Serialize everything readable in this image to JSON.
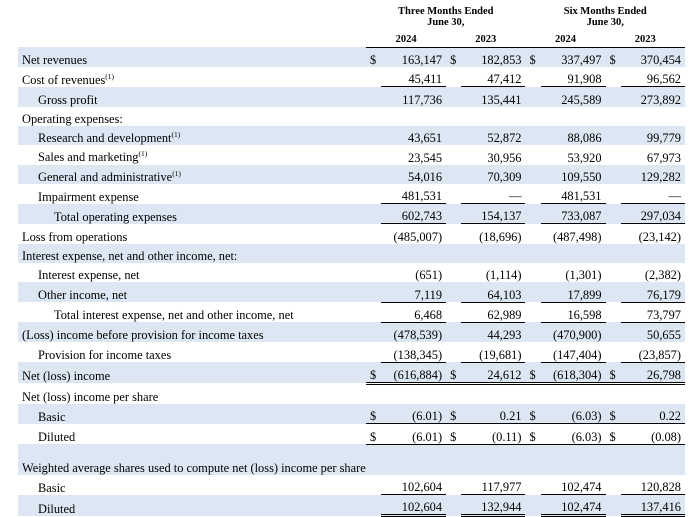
{
  "header": {
    "groups": [
      "Three Months Ended June 30,",
      "Six Months Ended June 30,"
    ],
    "years": [
      "2024",
      "2023",
      "2024",
      "2023"
    ]
  },
  "table": {
    "rows": [
      {
        "label": "Net revenues",
        "cells": [
          {
            "symbol": "$",
            "value": "163,147"
          },
          {
            "symbol": "$",
            "value": "182,853"
          },
          {
            "symbol": "$",
            "value": "337,497"
          },
          {
            "symbol": "$",
            "value": "370,454"
          }
        ]
      },
      {
        "label": "Cost of revenues",
        "note": "(1)",
        "cells": [
          {
            "value": "45,411"
          },
          {
            "value": "47,412"
          },
          {
            "value": "91,908"
          },
          {
            "value": "96,562"
          }
        ]
      },
      {
        "label": "Gross profit",
        "cells": [
          {
            "value": "117,736"
          },
          {
            "value": "135,441"
          },
          {
            "value": "245,589"
          },
          {
            "value": "273,892"
          }
        ]
      },
      {
        "label": "Operating expenses:"
      },
      {
        "label": "Research and development",
        "note": "(1)",
        "cells": [
          {
            "value": "43,651"
          },
          {
            "value": "52,872"
          },
          {
            "value": "88,086"
          },
          {
            "value": "99,779"
          }
        ]
      },
      {
        "label": "Sales and marketing",
        "note": "(1)",
        "cells": [
          {
            "value": "23,545"
          },
          {
            "value": "30,956"
          },
          {
            "value": "53,920"
          },
          {
            "value": "67,973"
          }
        ]
      },
      {
        "label": "General and administrative",
        "note": "(1)",
        "cells": [
          {
            "value": "54,016"
          },
          {
            "value": "70,309"
          },
          {
            "value": "109,550"
          },
          {
            "value": "129,282"
          }
        ]
      },
      {
        "label": "Impairment expense",
        "cells": [
          {
            "value": "481,531"
          },
          {
            "value": "—"
          },
          {
            "value": "481,531"
          },
          {
            "value": "—"
          }
        ]
      },
      {
        "label": "Total operating expenses",
        "cells": [
          {
            "value": "602,743"
          },
          {
            "value": "154,137"
          },
          {
            "value": "733,087"
          },
          {
            "value": "297,034"
          }
        ]
      },
      {
        "label": "Loss from operations",
        "cells": [
          {
            "value": "(485,007)"
          },
          {
            "value": "(18,696)"
          },
          {
            "value": "(487,498)"
          },
          {
            "value": "(23,142)"
          }
        ]
      },
      {
        "label": "Interest expense, net and other income, net:"
      },
      {
        "label": "Interest expense, net",
        "cells": [
          {
            "value": "(651)"
          },
          {
            "value": "(1,114)"
          },
          {
            "value": "(1,301)"
          },
          {
            "value": "(2,382)"
          }
        ]
      },
      {
        "label": "Other income, net",
        "cells": [
          {
            "value": "7,119"
          },
          {
            "value": "64,103"
          },
          {
            "value": "17,899"
          },
          {
            "value": "76,179"
          }
        ]
      },
      {
        "label": "Total interest expense, net and other income, net",
        "cells": [
          {
            "value": "6,468"
          },
          {
            "value": "62,989"
          },
          {
            "value": "16,598"
          },
          {
            "value": "73,797"
          }
        ]
      },
      {
        "label": "(Loss) income before provision for income taxes",
        "cells": [
          {
            "value": "(478,539)"
          },
          {
            "value": "44,293"
          },
          {
            "value": "(470,900)"
          },
          {
            "value": "50,655"
          }
        ]
      },
      {
        "label": "Provision for income taxes",
        "cells": [
          {
            "value": "(138,345)"
          },
          {
            "value": "(19,681)"
          },
          {
            "value": "(147,404)"
          },
          {
            "value": "(23,857)"
          }
        ]
      },
      {
        "label": "Net (loss) income",
        "cells": [
          {
            "symbol": "$",
            "value": "(616,884)"
          },
          {
            "symbol": "$",
            "value": "24,612"
          },
          {
            "symbol": "$",
            "value": "(618,304)"
          },
          {
            "symbol": "$",
            "value": "26,798"
          }
        ]
      },
      {
        "label": "Net (loss) income per share"
      },
      {
        "label": "Basic",
        "cells": [
          {
            "symbol": "$",
            "value": "(6.01)"
          },
          {
            "symbol": "$",
            "value": "0.21"
          },
          {
            "symbol": "$",
            "value": "(6.03)"
          },
          {
            "symbol": "$",
            "value": "0.22"
          }
        ]
      },
      {
        "label": "Diluted",
        "cells": [
          {
            "symbol": "$",
            "value": "(6.01)"
          },
          {
            "symbol": "$",
            "value": "(0.11)"
          },
          {
            "symbol": "$",
            "value": "(6.03)"
          },
          {
            "symbol": "$",
            "value": "(0.08)"
          }
        ]
      },
      {
        "label": "Weighted average shares used to compute net (loss) income per share"
      },
      {
        "label": "Basic",
        "cells": [
          {
            "value": "102,604"
          },
          {
            "value": "117,977"
          },
          {
            "value": "102,474"
          },
          {
            "value": "120,828"
          }
        ]
      },
      {
        "label": "Diluted",
        "cells": [
          {
            "value": "102,604"
          },
          {
            "value": "132,944"
          },
          {
            "value": "102,474"
          },
          {
            "value": "137,416"
          }
        ]
      }
    ]
  }
}
